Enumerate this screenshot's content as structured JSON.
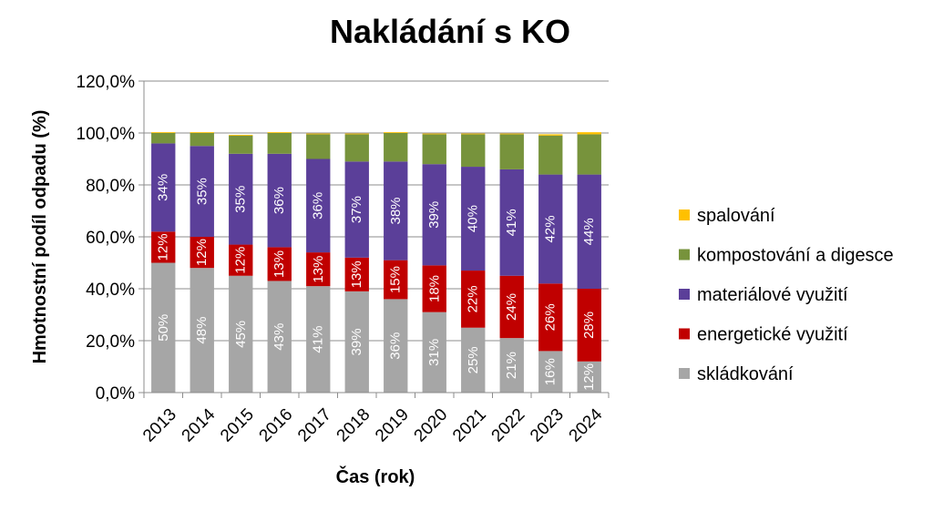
{
  "chart_data": {
    "type": "bar",
    "stacked": true,
    "title": "Nakládání s KO",
    "xlabel": "Čas (rok)",
    "ylabel": "Hmotnostní podíl odpadu (%)",
    "ylim": [
      0,
      120
    ],
    "yticks": [
      "0,0%",
      "20,0%",
      "40,0%",
      "60,0%",
      "80,0%",
      "100,0%",
      "120,0%"
    ],
    "grid": true,
    "legend_position": "right",
    "categories": [
      "2013",
      "2014",
      "2015",
      "2016",
      "2017",
      "2018",
      "2019",
      "2020",
      "2021",
      "2022",
      "2023",
      "2024"
    ],
    "series": [
      {
        "name": "skládkování",
        "color": "#a6a6a6",
        "values": [
          50,
          48,
          45,
          43,
          41,
          39,
          36,
          31,
          25,
          21,
          16,
          12
        ],
        "labels": [
          "50%",
          "48%",
          "45%",
          "43%",
          "41%",
          "39%",
          "36%",
          "31%",
          "25%",
          "21%",
          "16%",
          "12%"
        ]
      },
      {
        "name": "energetické využití",
        "color": "#c00000",
        "values": [
          12,
          12,
          12,
          13,
          13,
          13,
          15,
          18,
          22,
          24,
          26,
          28
        ],
        "labels": [
          "12%",
          "12%",
          "12%",
          "13%",
          "13%",
          "13%",
          "15%",
          "18%",
          "22%",
          "24%",
          "26%",
          "28%"
        ]
      },
      {
        "name": "materiálové využití",
        "color": "#5b3f99",
        "values": [
          34,
          35,
          35,
          36,
          36,
          37,
          38,
          39,
          40,
          41,
          42,
          44
        ],
        "labels": [
          "34%",
          "35%",
          "35%",
          "36%",
          "36%",
          "37%",
          "38%",
          "39%",
          "40%",
          "41%",
          "42%",
          "44%"
        ]
      },
      {
        "name": "kompostování a digesce",
        "color": "#77933c",
        "values": [
          4,
          5,
          7,
          8,
          9.5,
          10.5,
          11,
          11.5,
          12.5,
          13.5,
          15,
          15.5
        ],
        "labels": []
      },
      {
        "name": "spalování",
        "color": "#ffc000",
        "values": [
          0.3,
          0.3,
          0.3,
          0.3,
          0.3,
          0.3,
          0.3,
          0.3,
          0.3,
          0.3,
          0.5,
          0.8
        ],
        "labels": []
      }
    ],
    "legend_order": [
      "spalování",
      "kompostování a digesce",
      "materiálové využití",
      "energetické využití",
      "skládkování"
    ]
  }
}
